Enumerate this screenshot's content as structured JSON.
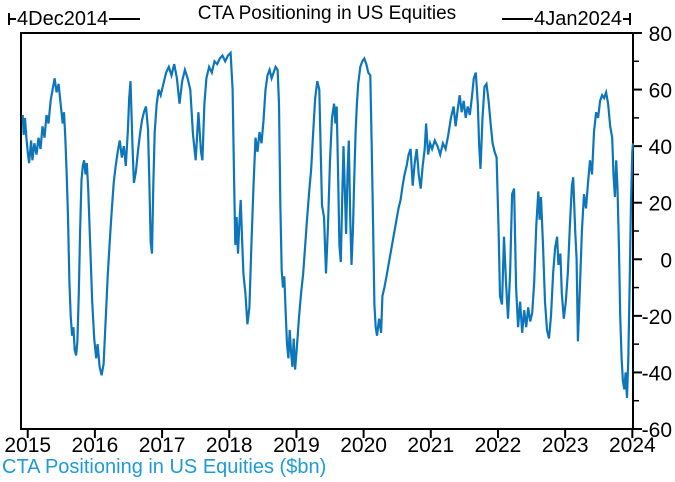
{
  "header": {
    "title": "CTA Positioning in US Equities",
    "left_annotation": "4Dec2014",
    "right_annotation": "4Jan2024"
  },
  "footer": {
    "caption": "CTA Positioning in US Equities ($bn)"
  },
  "colors": {
    "line": "#0d76bb",
    "caption": "#1e9bd7",
    "axis": "#000000",
    "background": "#ffffff"
  },
  "chart_data": {
    "type": "line",
    "title": "CTA Positioning in US Equities",
    "series_label": "CTA Positioning in US Equities ($bn)",
    "units": "$bn",
    "start_date_label": "4Dec2014",
    "end_date_label": "4Jan2024",
    "grid": false,
    "legend_position": "none",
    "x_domain": [
      2014.9,
      2024.01
    ],
    "x_ticks": [
      2015,
      2016,
      2017,
      2018,
      2019,
      2020,
      2021,
      2022,
      2023,
      2024
    ],
    "ylim": [
      -60,
      80
    ],
    "y_ticks": [
      80,
      60,
      40,
      20,
      0,
      -20,
      -40,
      -60
    ],
    "y_minor_step": 10,
    "points": [
      [
        2014.925,
        51
      ],
      [
        2014.94,
        44
      ],
      [
        2014.96,
        50
      ],
      [
        2014.98,
        43
      ],
      [
        2015.0,
        38
      ],
      [
        2015.02,
        34
      ],
      [
        2015.05,
        42
      ],
      [
        2015.07,
        35
      ],
      [
        2015.1,
        41
      ],
      [
        2015.13,
        37
      ],
      [
        2015.16,
        43
      ],
      [
        2015.19,
        39
      ],
      [
        2015.22,
        47
      ],
      [
        2015.25,
        43
      ],
      [
        2015.28,
        51
      ],
      [
        2015.31,
        48
      ],
      [
        2015.34,
        56
      ],
      [
        2015.37,
        60
      ],
      [
        2015.4,
        64
      ],
      [
        2015.43,
        59
      ],
      [
        2015.46,
        62
      ],
      [
        2015.49,
        55
      ],
      [
        2015.52,
        48
      ],
      [
        2015.54,
        52
      ],
      [
        2015.56,
        43
      ],
      [
        2015.58,
        30
      ],
      [
        2015.6,
        15
      ],
      [
        2015.62,
        -8
      ],
      [
        2015.64,
        -20
      ],
      [
        2015.66,
        -27
      ],
      [
        2015.68,
        -24
      ],
      [
        2015.7,
        -32
      ],
      [
        2015.72,
        -34
      ],
      [
        2015.74,
        -29
      ],
      [
        2015.76,
        -12
      ],
      [
        2015.78,
        10
      ],
      [
        2015.8,
        28
      ],
      [
        2015.82,
        33
      ],
      [
        2015.84,
        35
      ],
      [
        2015.86,
        30
      ],
      [
        2015.88,
        34
      ],
      [
        2015.9,
        25
      ],
      [
        2015.93,
        5
      ],
      [
        2015.96,
        -15
      ],
      [
        2015.99,
        -28
      ],
      [
        2016.02,
        -35
      ],
      [
        2016.04,
        -30
      ],
      [
        2016.07,
        -38
      ],
      [
        2016.1,
        -41
      ],
      [
        2016.13,
        -37
      ],
      [
        2016.16,
        -22
      ],
      [
        2016.19,
        -6
      ],
      [
        2016.22,
        6
      ],
      [
        2016.25,
        17
      ],
      [
        2016.28,
        27
      ],
      [
        2016.31,
        33
      ],
      [
        2016.34,
        38
      ],
      [
        2016.37,
        42
      ],
      [
        2016.4,
        36
      ],
      [
        2016.43,
        40
      ],
      [
        2016.46,
        33
      ],
      [
        2016.49,
        45
      ],
      [
        2016.51,
        57
      ],
      [
        2016.53,
        63
      ],
      [
        2016.56,
        40
      ],
      [
        2016.58,
        27
      ],
      [
        2016.61,
        31
      ],
      [
        2016.64,
        38
      ],
      [
        2016.67,
        44
      ],
      [
        2016.7,
        49
      ],
      [
        2016.73,
        52
      ],
      [
        2016.76,
        54
      ],
      [
        2016.79,
        46
      ],
      [
        2016.81,
        28
      ],
      [
        2016.83,
        6
      ],
      [
        2016.85,
        2
      ],
      [
        2016.87,
        26
      ],
      [
        2016.89,
        45
      ],
      [
        2016.92,
        55
      ],
      [
        2016.95,
        60
      ],
      [
        2016.98,
        58
      ],
      [
        2017.02,
        62
      ],
      [
        2017.06,
        66
      ],
      [
        2017.1,
        68
      ],
      [
        2017.14,
        65
      ],
      [
        2017.18,
        69
      ],
      [
        2017.22,
        64
      ],
      [
        2017.26,
        55
      ],
      [
        2017.3,
        63
      ],
      [
        2017.34,
        67
      ],
      [
        2017.38,
        64
      ],
      [
        2017.42,
        60
      ],
      [
        2017.46,
        44
      ],
      [
        2017.5,
        35
      ],
      [
        2017.54,
        52
      ],
      [
        2017.58,
        38
      ],
      [
        2017.6,
        35
      ],
      [
        2017.63,
        55
      ],
      [
        2017.66,
        64
      ],
      [
        2017.7,
        68
      ],
      [
        2017.74,
        66
      ],
      [
        2017.78,
        70
      ],
      [
        2017.82,
        69
      ],
      [
        2017.86,
        71
      ],
      [
        2017.9,
        72
      ],
      [
        2017.94,
        70
      ],
      [
        2017.98,
        72
      ],
      [
        2018.02,
        73
      ],
      [
        2018.05,
        60
      ],
      [
        2018.07,
        30
      ],
      [
        2018.09,
        5
      ],
      [
        2018.11,
        15
      ],
      [
        2018.13,
        2
      ],
      [
        2018.15,
        12
      ],
      [
        2018.17,
        21
      ],
      [
        2018.19,
        8
      ],
      [
        2018.21,
        -5
      ],
      [
        2018.24,
        -12
      ],
      [
        2018.27,
        -23
      ],
      [
        2018.3,
        -17
      ],
      [
        2018.33,
        5
      ],
      [
        2018.36,
        25
      ],
      [
        2018.39,
        43
      ],
      [
        2018.42,
        38
      ],
      [
        2018.45,
        45
      ],
      [
        2018.48,
        41
      ],
      [
        2018.51,
        49
      ],
      [
        2018.54,
        60
      ],
      [
        2018.57,
        65
      ],
      [
        2018.6,
        67
      ],
      [
        2018.63,
        64
      ],
      [
        2018.66,
        66
      ],
      [
        2018.69,
        68
      ],
      [
        2018.72,
        67
      ],
      [
        2018.74,
        55
      ],
      [
        2018.76,
        20
      ],
      [
        2018.78,
        -4
      ],
      [
        2018.8,
        -10
      ],
      [
        2018.82,
        -6
      ],
      [
        2018.84,
        -19
      ],
      [
        2018.86,
        -30
      ],
      [
        2018.88,
        -35
      ],
      [
        2018.9,
        -25
      ],
      [
        2018.92,
        -33
      ],
      [
        2018.94,
        -38
      ],
      [
        2018.96,
        -28
      ],
      [
        2018.98,
        -39
      ],
      [
        2019.01,
        -30
      ],
      [
        2019.04,
        -20
      ],
      [
        2019.07,
        -12
      ],
      [
        2019.1,
        -5
      ],
      [
        2019.13,
        5
      ],
      [
        2019.16,
        15
      ],
      [
        2019.19,
        24
      ],
      [
        2019.22,
        32
      ],
      [
        2019.25,
        45
      ],
      [
        2019.28,
        57
      ],
      [
        2019.31,
        63
      ],
      [
        2019.34,
        60
      ],
      [
        2019.36,
        40
      ],
      [
        2019.38,
        19
      ],
      [
        2019.41,
        15
      ],
      [
        2019.44,
        -5
      ],
      [
        2019.47,
        12
      ],
      [
        2019.5,
        35
      ],
      [
        2019.53,
        50
      ],
      [
        2019.56,
        55
      ],
      [
        2019.58,
        48
      ],
      [
        2019.6,
        54
      ],
      [
        2019.62,
        30
      ],
      [
        2019.64,
        5
      ],
      [
        2019.66,
        -1
      ],
      [
        2019.68,
        20
      ],
      [
        2019.7,
        40
      ],
      [
        2019.72,
        25
      ],
      [
        2019.74,
        9
      ],
      [
        2019.76,
        30
      ],
      [
        2019.78,
        42
      ],
      [
        2019.8,
        15
      ],
      [
        2019.82,
        -2
      ],
      [
        2019.84,
        10
      ],
      [
        2019.86,
        28
      ],
      [
        2019.88,
        45
      ],
      [
        2019.9,
        55
      ],
      [
        2019.92,
        62
      ],
      [
        2019.95,
        68
      ],
      [
        2019.98,
        70
      ],
      [
        2020.01,
        71
      ],
      [
        2020.04,
        69
      ],
      [
        2020.07,
        66
      ],
      [
        2020.1,
        65
      ],
      [
        2020.12,
        40
      ],
      [
        2020.14,
        14
      ],
      [
        2020.16,
        -16
      ],
      [
        2020.18,
        -24
      ],
      [
        2020.2,
        -27
      ],
      [
        2020.23,
        -21
      ],
      [
        2020.26,
        -26
      ],
      [
        2020.28,
        -13
      ],
      [
        2020.31,
        -10
      ],
      [
        2020.34,
        -6
      ],
      [
        2020.37,
        -2
      ],
      [
        2020.4,
        2
      ],
      [
        2020.43,
        6
      ],
      [
        2020.46,
        10
      ],
      [
        2020.49,
        14
      ],
      [
        2020.52,
        18
      ],
      [
        2020.55,
        21
      ],
      [
        2020.58,
        26
      ],
      [
        2020.61,
        30
      ],
      [
        2020.64,
        33
      ],
      [
        2020.67,
        37
      ],
      [
        2020.7,
        39
      ],
      [
        2020.73,
        26
      ],
      [
        2020.76,
        34
      ],
      [
        2020.79,
        39
      ],
      [
        2020.82,
        30
      ],
      [
        2020.85,
        25
      ],
      [
        2020.88,
        33
      ],
      [
        2020.91,
        39
      ],
      [
        2020.93,
        48
      ],
      [
        2020.96,
        37
      ],
      [
        2020.99,
        41
      ],
      [
        2021.02,
        39
      ],
      [
        2021.06,
        42
      ],
      [
        2021.1,
        40
      ],
      [
        2021.14,
        37
      ],
      [
        2021.18,
        41
      ],
      [
        2021.22,
        39
      ],
      [
        2021.26,
        44
      ],
      [
        2021.3,
        50
      ],
      [
        2021.34,
        54
      ],
      [
        2021.37,
        47
      ],
      [
        2021.4,
        53
      ],
      [
        2021.43,
        58
      ],
      [
        2021.46,
        52
      ],
      [
        2021.49,
        56
      ],
      [
        2021.52,
        50
      ],
      [
        2021.55,
        54
      ],
      [
        2021.58,
        51
      ],
      [
        2021.61,
        57
      ],
      [
        2021.64,
        64
      ],
      [
        2021.67,
        66
      ],
      [
        2021.7,
        55
      ],
      [
        2021.72,
        40
      ],
      [
        2021.74,
        32
      ],
      [
        2021.77,
        50
      ],
      [
        2021.8,
        61
      ],
      [
        2021.83,
        62
      ],
      [
        2021.86,
        56
      ],
      [
        2021.89,
        48
      ],
      [
        2021.92,
        41
      ],
      [
        2021.95,
        38
      ],
      [
        2021.98,
        36
      ],
      [
        2022.01,
        10
      ],
      [
        2022.03,
        -13
      ],
      [
        2022.06,
        -16
      ],
      [
        2022.09,
        8
      ],
      [
        2022.12,
        -8
      ],
      [
        2022.15,
        -21
      ],
      [
        2022.18,
        -5
      ],
      [
        2022.21,
        23
      ],
      [
        2022.24,
        25
      ],
      [
        2022.27,
        -10
      ],
      [
        2022.3,
        -24
      ],
      [
        2022.33,
        -15
      ],
      [
        2022.36,
        -26
      ],
      [
        2022.39,
        -18
      ],
      [
        2022.42,
        -24
      ],
      [
        2022.45,
        -17
      ],
      [
        2022.48,
        -22
      ],
      [
        2022.51,
        -19
      ],
      [
        2022.54,
        -8
      ],
      [
        2022.57,
        12
      ],
      [
        2022.6,
        24
      ],
      [
        2022.62,
        14
      ],
      [
        2022.64,
        22
      ],
      [
        2022.67,
        5
      ],
      [
        2022.7,
        -15
      ],
      [
        2022.73,
        -25
      ],
      [
        2022.76,
        -28
      ],
      [
        2022.79,
        -20
      ],
      [
        2022.82,
        -5
      ],
      [
        2022.85,
        4
      ],
      [
        2022.88,
        8
      ],
      [
        2022.9,
        -2
      ],
      [
        2022.93,
        2
      ],
      [
        2022.95,
        -12
      ],
      [
        2022.98,
        -21
      ],
      [
        2023.01,
        -15
      ],
      [
        2023.04,
        -5
      ],
      [
        2023.07,
        12
      ],
      [
        2023.1,
        26
      ],
      [
        2023.12,
        29
      ],
      [
        2023.15,
        10
      ],
      [
        2023.17,
        0
      ],
      [
        2023.19,
        -29
      ],
      [
        2023.22,
        -10
      ],
      [
        2023.25,
        10
      ],
      [
        2023.28,
        23
      ],
      [
        2023.31,
        18
      ],
      [
        2023.34,
        27
      ],
      [
        2023.37,
        35
      ],
      [
        2023.4,
        30
      ],
      [
        2023.43,
        45
      ],
      [
        2023.46,
        52
      ],
      [
        2023.49,
        50
      ],
      [
        2023.52,
        56
      ],
      [
        2023.55,
        58
      ],
      [
        2023.58,
        57
      ],
      [
        2023.61,
        59
      ],
      [
        2023.64,
        55
      ],
      [
        2023.67,
        47
      ],
      [
        2023.7,
        43
      ],
      [
        2023.72,
        30
      ],
      [
        2023.74,
        22
      ],
      [
        2023.76,
        35
      ],
      [
        2023.78,
        25
      ],
      [
        2023.8,
        5
      ],
      [
        2023.82,
        -20
      ],
      [
        2023.84,
        -35
      ],
      [
        2023.86,
        -43
      ],
      [
        2023.88,
        -46
      ],
      [
        2023.9,
        -40
      ],
      [
        2023.92,
        -49
      ],
      [
        2023.94,
        -35
      ],
      [
        2023.96,
        -10
      ],
      [
        2023.98,
        20
      ],
      [
        2024.0,
        38
      ],
      [
        2024.01,
        41
      ]
    ]
  }
}
